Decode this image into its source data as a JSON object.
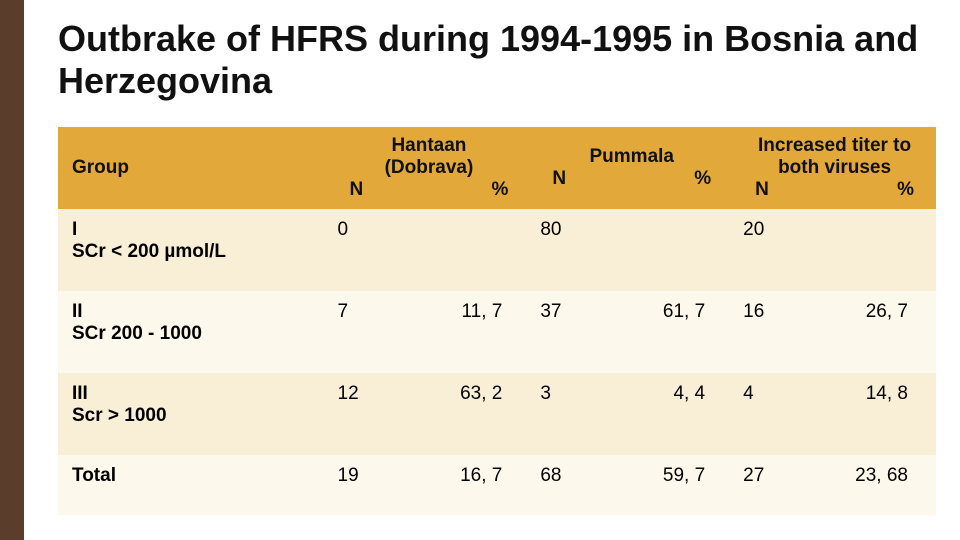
{
  "title": "Outbrake of HFRS during 1994-1995 in Bosnia and Herzegovina",
  "colors": {
    "sidebar": "#5a3e2b",
    "header_bg": "#e2a83a",
    "row_odd": "#f8efd6",
    "row_even": "#fcf8eb",
    "text": "#111111"
  },
  "table": {
    "header": {
      "group": "Group",
      "col1_top": "Hantaan",
      "col1_mid": "(Dobrava)",
      "col2_top": "Pummala",
      "col3_top": "Increased titer to",
      "col3_mid": "both viruses",
      "n_label": "N",
      "pct_label": "%"
    },
    "rows": [
      {
        "group_line1": "I",
        "group_line2": "SCr < 200 µmol/L",
        "n1": "0",
        "p1": "",
        "n2": "80",
        "p2": "",
        "n3": "20",
        "p3": ""
      },
      {
        "group_line1": "II",
        "group_line2": "SCr 200 - 1000",
        "n1": "7",
        "p1": "11, 7",
        "n2": "37",
        "p2": "61, 7",
        "n3": "16",
        "p3": "26, 7"
      },
      {
        "group_line1": "III",
        "group_line2": "Scr > 1000",
        "n1": "12",
        "p1": "63, 2",
        "n2": "3",
        "p2": "4, 4",
        "n3": "4",
        "p3": "14, 8"
      },
      {
        "group_line1": "Total",
        "group_line2": "",
        "n1": "19",
        "p1": "16, 7",
        "n2": "68",
        "p2": "59, 7",
        "n3": "27",
        "p3": "23, 68"
      }
    ]
  }
}
